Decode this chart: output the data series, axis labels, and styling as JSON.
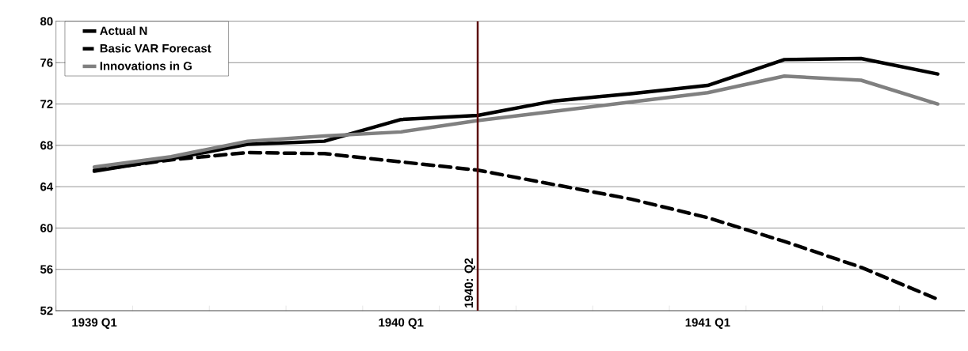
{
  "chart_data": {
    "type": "line",
    "categories": [
      "1939 Q1",
      null,
      null,
      null,
      "1940 Q1",
      null,
      null,
      null,
      "1941 Q1",
      null,
      null,
      null
    ],
    "series": [
      {
        "name": "Actual N",
        "color": "#000000",
        "line_style": "solid",
        "values": [
          65.5,
          66.7,
          68.1,
          68.4,
          70.5,
          70.9,
          72.3,
          73.0,
          73.8,
          76.3,
          76.4,
          74.9
        ]
      },
      {
        "name": "Basic VAR Forecast",
        "color": "#000000",
        "line_style": "dashed",
        "values": [
          65.6,
          66.6,
          67.3,
          67.2,
          66.4,
          65.6,
          64.2,
          62.8,
          61.0,
          58.7,
          56.2,
          53.1
        ]
      },
      {
        "name": "Innovations in G",
        "color": "#808080",
        "line_style": "solid",
        "values": [
          65.9,
          66.9,
          68.4,
          68.9,
          69.3,
          70.4,
          71.3,
          72.2,
          73.1,
          74.7,
          74.3,
          72.0
        ]
      }
    ],
    "ylim": [
      52,
      80
    ],
    "yticks": [
      52,
      56,
      60,
      64,
      68,
      72,
      76,
      80
    ],
    "grid": "y",
    "legend": "top left",
    "marker": "none",
    "annotations": [
      "1940: Q2"
    ]
  }
}
